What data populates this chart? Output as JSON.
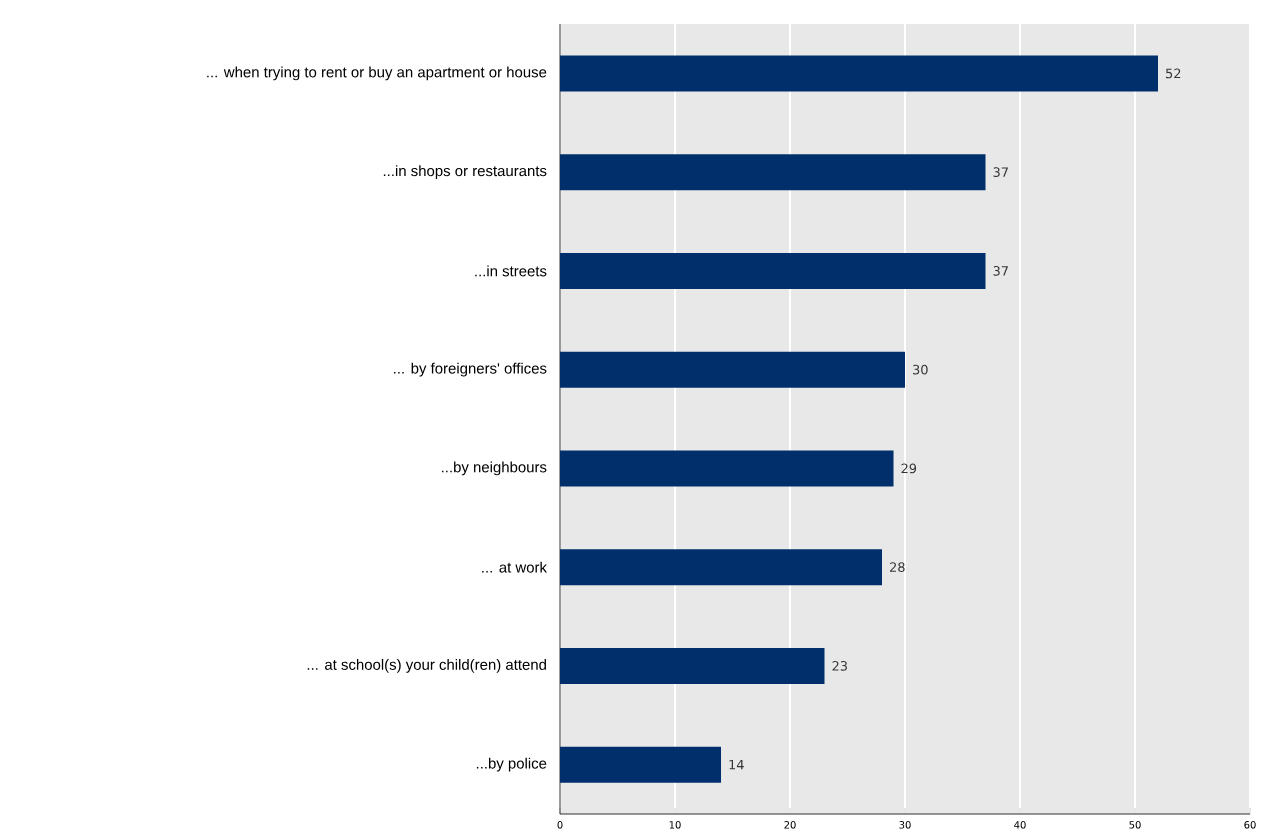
{
  "chart_data": {
    "type": "bar",
    "orientation": "horizontal",
    "categories": [
      "... when trying to rent or buy an apartment or house",
      "...in shops or restaurants",
      "...in streets",
      "... by foreigners' offices",
      "...by neighbours",
      "... at work",
      "... at school(s) your child(ren) attend",
      "...by police"
    ],
    "values": [
      52,
      37,
      37,
      30,
      29,
      28,
      23,
      14
    ],
    "color": "#002f6c",
    "xlim": [
      0,
      60
    ],
    "xticks": [
      0,
      10,
      20,
      30,
      40,
      50,
      60
    ],
    "grid": "x",
    "data_labels": true
  }
}
